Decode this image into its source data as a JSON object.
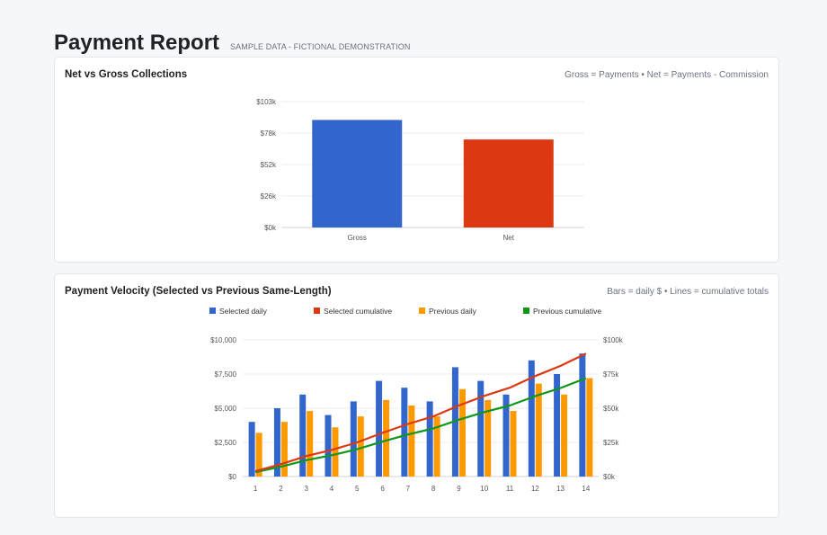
{
  "page": {
    "title": "Payment Report",
    "subtitle": "SAMPLE DATA - FICTIONAL DEMONSTRATION"
  },
  "colors": {
    "gross": "#3366cc",
    "net": "#dc3912",
    "selected_daily": "#3366cc",
    "selected_cumulative": "#dc3912",
    "previous_daily": "#ff9900",
    "previous_cumulative": "#109618"
  },
  "card1": {
    "title": "Net vs Gross Collections",
    "note": "Gross = Payments • Net = Payments - Commission"
  },
  "card2": {
    "title": "Payment Velocity (Selected vs Previous Same-Length)",
    "note": "Bars = daily $ • Lines = cumulative totals"
  },
  "chart_data": [
    {
      "type": "bar",
      "categories": [
        "Gross",
        "Net"
      ],
      "values": [
        88000,
        72000
      ],
      "ylim": [
        0,
        103000
      ],
      "yticks": [
        "$0k",
        "$26k",
        "$52k",
        "$78k",
        "$103k"
      ],
      "grid": true,
      "legend": "none"
    },
    {
      "type": "bar",
      "categories": [
        "1",
        "2",
        "3",
        "4",
        "5",
        "6",
        "7",
        "8",
        "9",
        "10",
        "11",
        "12",
        "13",
        "14"
      ],
      "series": [
        {
          "name": "Selected daily",
          "axis": "left",
          "kind": "bar",
          "values": [
            4000,
            5000,
            6000,
            4500,
            5500,
            7000,
            6500,
            5500,
            8000,
            7000,
            6000,
            8500,
            7500,
            9000
          ]
        },
        {
          "name": "Previous daily",
          "axis": "left",
          "kind": "bar",
          "values": [
            3200,
            4000,
            4800,
            3600,
            4400,
            5600,
            5200,
            4400,
            6400,
            5600,
            4800,
            6800,
            6000,
            7200
          ]
        },
        {
          "name": "Selected cumulative",
          "axis": "right",
          "kind": "line",
          "values": [
            4000,
            9000,
            15000,
            19500,
            25000,
            32000,
            38500,
            44000,
            52000,
            59000,
            65000,
            73500,
            81000,
            90000
          ]
        },
        {
          "name": "Previous cumulative",
          "axis": "right",
          "kind": "line",
          "values": [
            3200,
            7200,
            12000,
            15600,
            20000,
            25600,
            30800,
            35200,
            41600,
            47200,
            52000,
            58800,
            64800,
            72000
          ]
        }
      ],
      "legend_order": [
        "Selected daily",
        "Selected cumulative",
        "Previous daily",
        "Previous cumulative"
      ],
      "ylim_left": [
        0,
        10000
      ],
      "ylim_right": [
        0,
        100000
      ],
      "yticks_left": [
        "$0",
        "$2,500",
        "$5,000",
        "$7,500",
        "$10,000"
      ],
      "yticks_right": [
        "$0k",
        "$25k",
        "$50k",
        "$75k",
        "$100k"
      ],
      "grid": true,
      "legend": "top"
    }
  ]
}
